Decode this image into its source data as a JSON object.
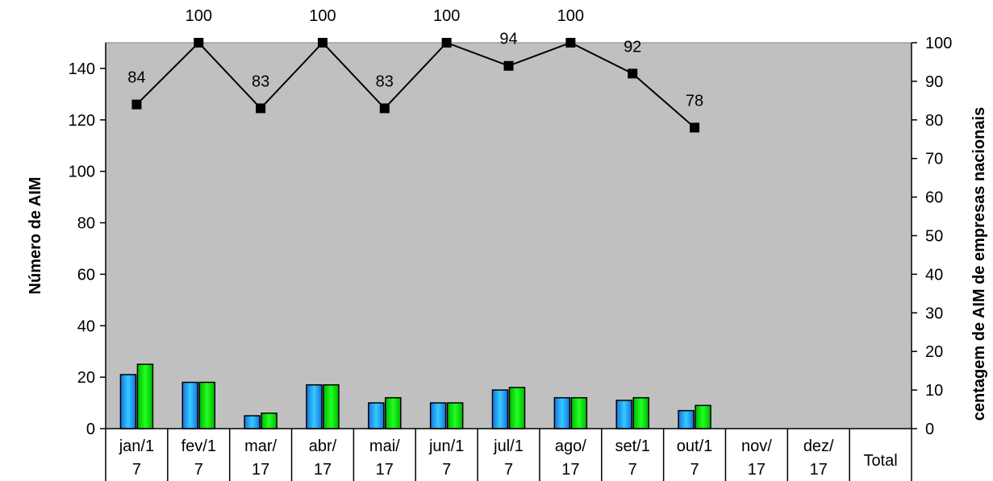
{
  "chart_data": {
    "type": "bar",
    "categories": [
      [
        "jan/1",
        "7"
      ],
      [
        "fev/1",
        "7"
      ],
      [
        "mar/",
        "17"
      ],
      [
        "abr/",
        "17"
      ],
      [
        "mai/",
        "17"
      ],
      [
        "jun/1",
        "7"
      ],
      [
        "jul/1",
        "7"
      ],
      [
        "ago/",
        "17"
      ],
      [
        "set/1",
        "7"
      ],
      [
        "out/1",
        "7"
      ],
      [
        "nov/",
        "17"
      ],
      [
        "dez/",
        "17"
      ],
      [
        "Total"
      ]
    ],
    "series": [
      {
        "type": "bar",
        "axis": "left",
        "color": "#1e90ff",
        "values": [
          21,
          18,
          5,
          17,
          10,
          10,
          15,
          12,
          11,
          7,
          null,
          null,
          null
        ]
      },
      {
        "type": "bar",
        "axis": "left",
        "color": "#00dd00",
        "values": [
          25,
          18,
          6,
          17,
          12,
          10,
          16,
          12,
          12,
          9,
          null,
          null,
          null
        ]
      },
      {
        "type": "line",
        "axis": "right",
        "color": "#000000",
        "marker": "square",
        "values": [
          84,
          100,
          83,
          100,
          83,
          100,
          94,
          100,
          92,
          78,
          null,
          null,
          null
        ]
      }
    ],
    "data_labels": [
      "84",
      "100",
      "83",
      "100",
      "83",
      "100",
      "94",
      "100",
      "92",
      "78"
    ],
    "ylabel": "Número de AIM",
    "y2label": "centagem de AIM de empresas nacionais",
    "ylim": [
      0,
      150
    ],
    "y2lim": [
      0,
      100
    ],
    "yticks": [
      "0",
      "20",
      "40",
      "60",
      "80",
      "100",
      "120",
      "140"
    ],
    "y2ticks": [
      "0",
      "10",
      "20",
      "30",
      "40",
      "50",
      "60",
      "70",
      "80",
      "90",
      "100"
    ],
    "plot_background": "#c0c0c0",
    "grid": false
  }
}
